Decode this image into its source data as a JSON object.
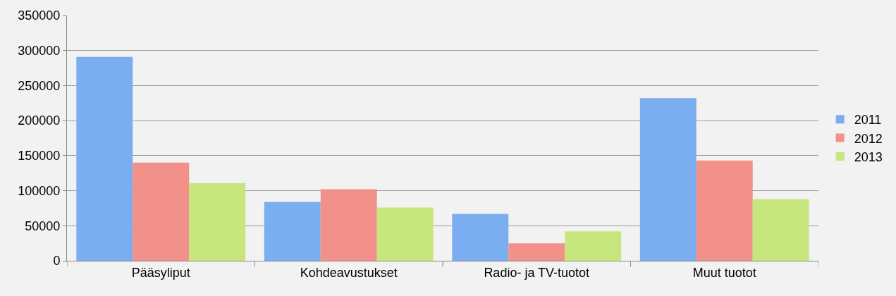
{
  "chart_data": {
    "type": "bar",
    "categories": [
      "Pääsyliput",
      "Kohdeavustukset",
      "Radio- ja TV-tuotot",
      "Muut tuotot"
    ],
    "series": [
      {
        "name": "2011",
        "color": "#7aaef0",
        "values": [
          291000,
          84000,
          67000,
          232000
        ]
      },
      {
        "name": "2012",
        "color": "#f2908a",
        "values": [
          140000,
          102000,
          25000,
          143000
        ]
      },
      {
        "name": "2013",
        "color": "#c8e67e",
        "values": [
          111000,
          76000,
          42000,
          88000
        ]
      }
    ],
    "ylim": [
      0,
      350000
    ],
    "yticks": [
      0,
      50000,
      100000,
      150000,
      200000,
      250000,
      300000,
      350000
    ],
    "grid": "y",
    "legend": "right"
  }
}
